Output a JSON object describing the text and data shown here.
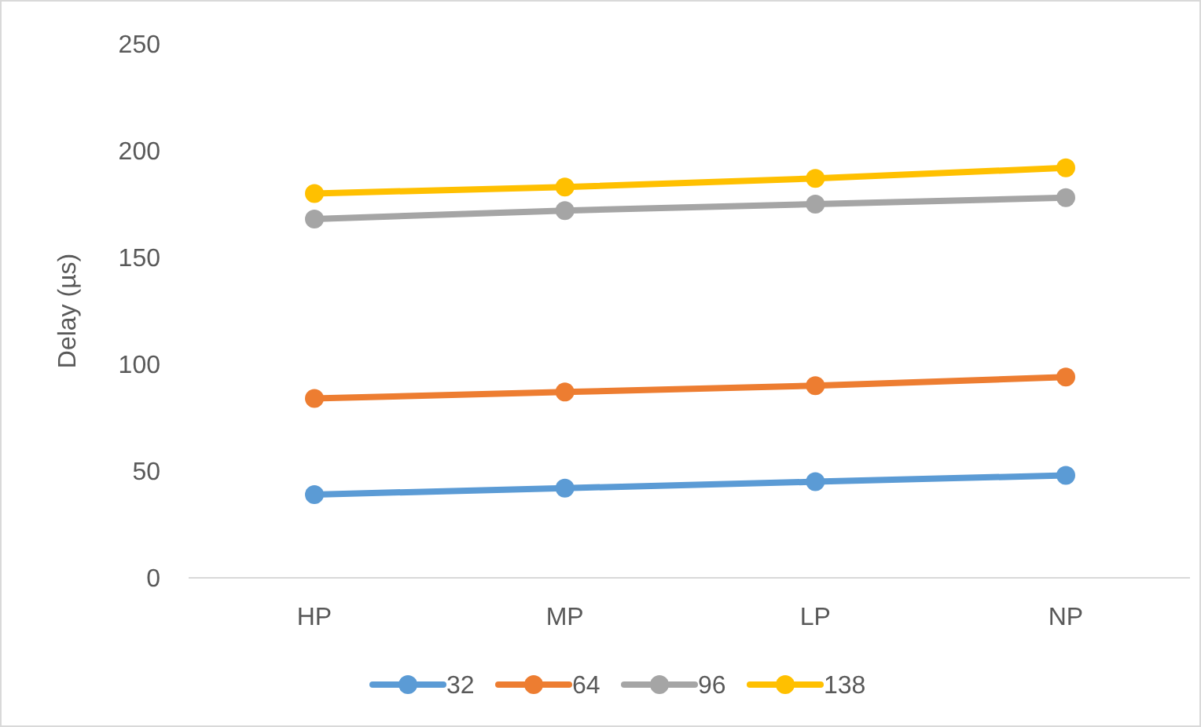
{
  "chart_data": {
    "type": "line",
    "ylabel": "Delay (µs)",
    "categories": [
      "HP",
      "MP",
      "LP",
      "NP"
    ],
    "ylim": [
      0,
      250
    ],
    "yticks": [
      0,
      50,
      100,
      150,
      200,
      250
    ],
    "grid": false,
    "legend": "bottom",
    "marker": "circle",
    "line_style": "solid",
    "series": [
      {
        "name": "32",
        "color": "#5b9bd5",
        "values": [
          39,
          42,
          45,
          48
        ]
      },
      {
        "name": "64",
        "color": "#ed7d31",
        "values": [
          84,
          87,
          90,
          94
        ]
      },
      {
        "name": "96",
        "color": "#a5a5a5",
        "values": [
          168,
          172,
          175,
          178
        ]
      },
      {
        "name": "138",
        "color": "#ffc000",
        "values": [
          180,
          183,
          187,
          192
        ]
      }
    ]
  }
}
